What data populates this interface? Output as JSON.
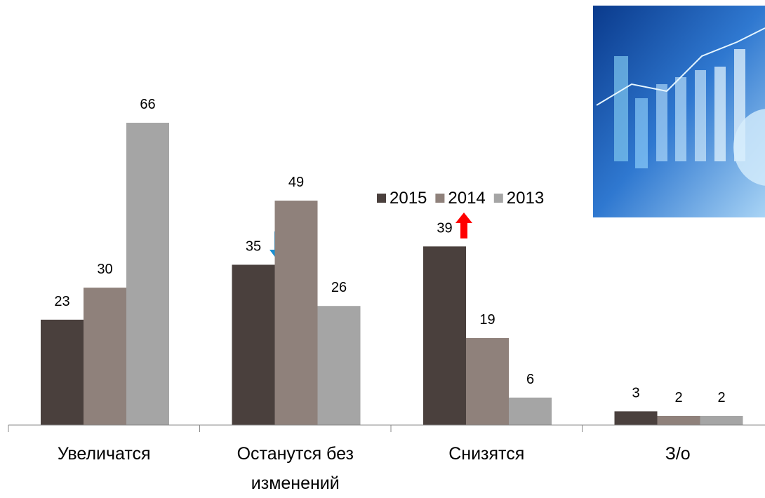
{
  "chart_data": {
    "type": "bar",
    "categories": [
      "Увеличатся",
      "Останутся без изменений",
      "Снизятся",
      "З/о"
    ],
    "series": [
      {
        "name": "2015",
        "color": "#4a403d",
        "values": [
          23,
          35,
          39,
          3
        ]
      },
      {
        "name": "2014",
        "color": "#8f817b",
        "values": [
          30,
          49,
          19,
          2
        ]
      },
      {
        "name": "2013",
        "color": "#a5a5a5",
        "values": [
          66,
          26,
          6,
          2
        ]
      }
    ]
  }
}
